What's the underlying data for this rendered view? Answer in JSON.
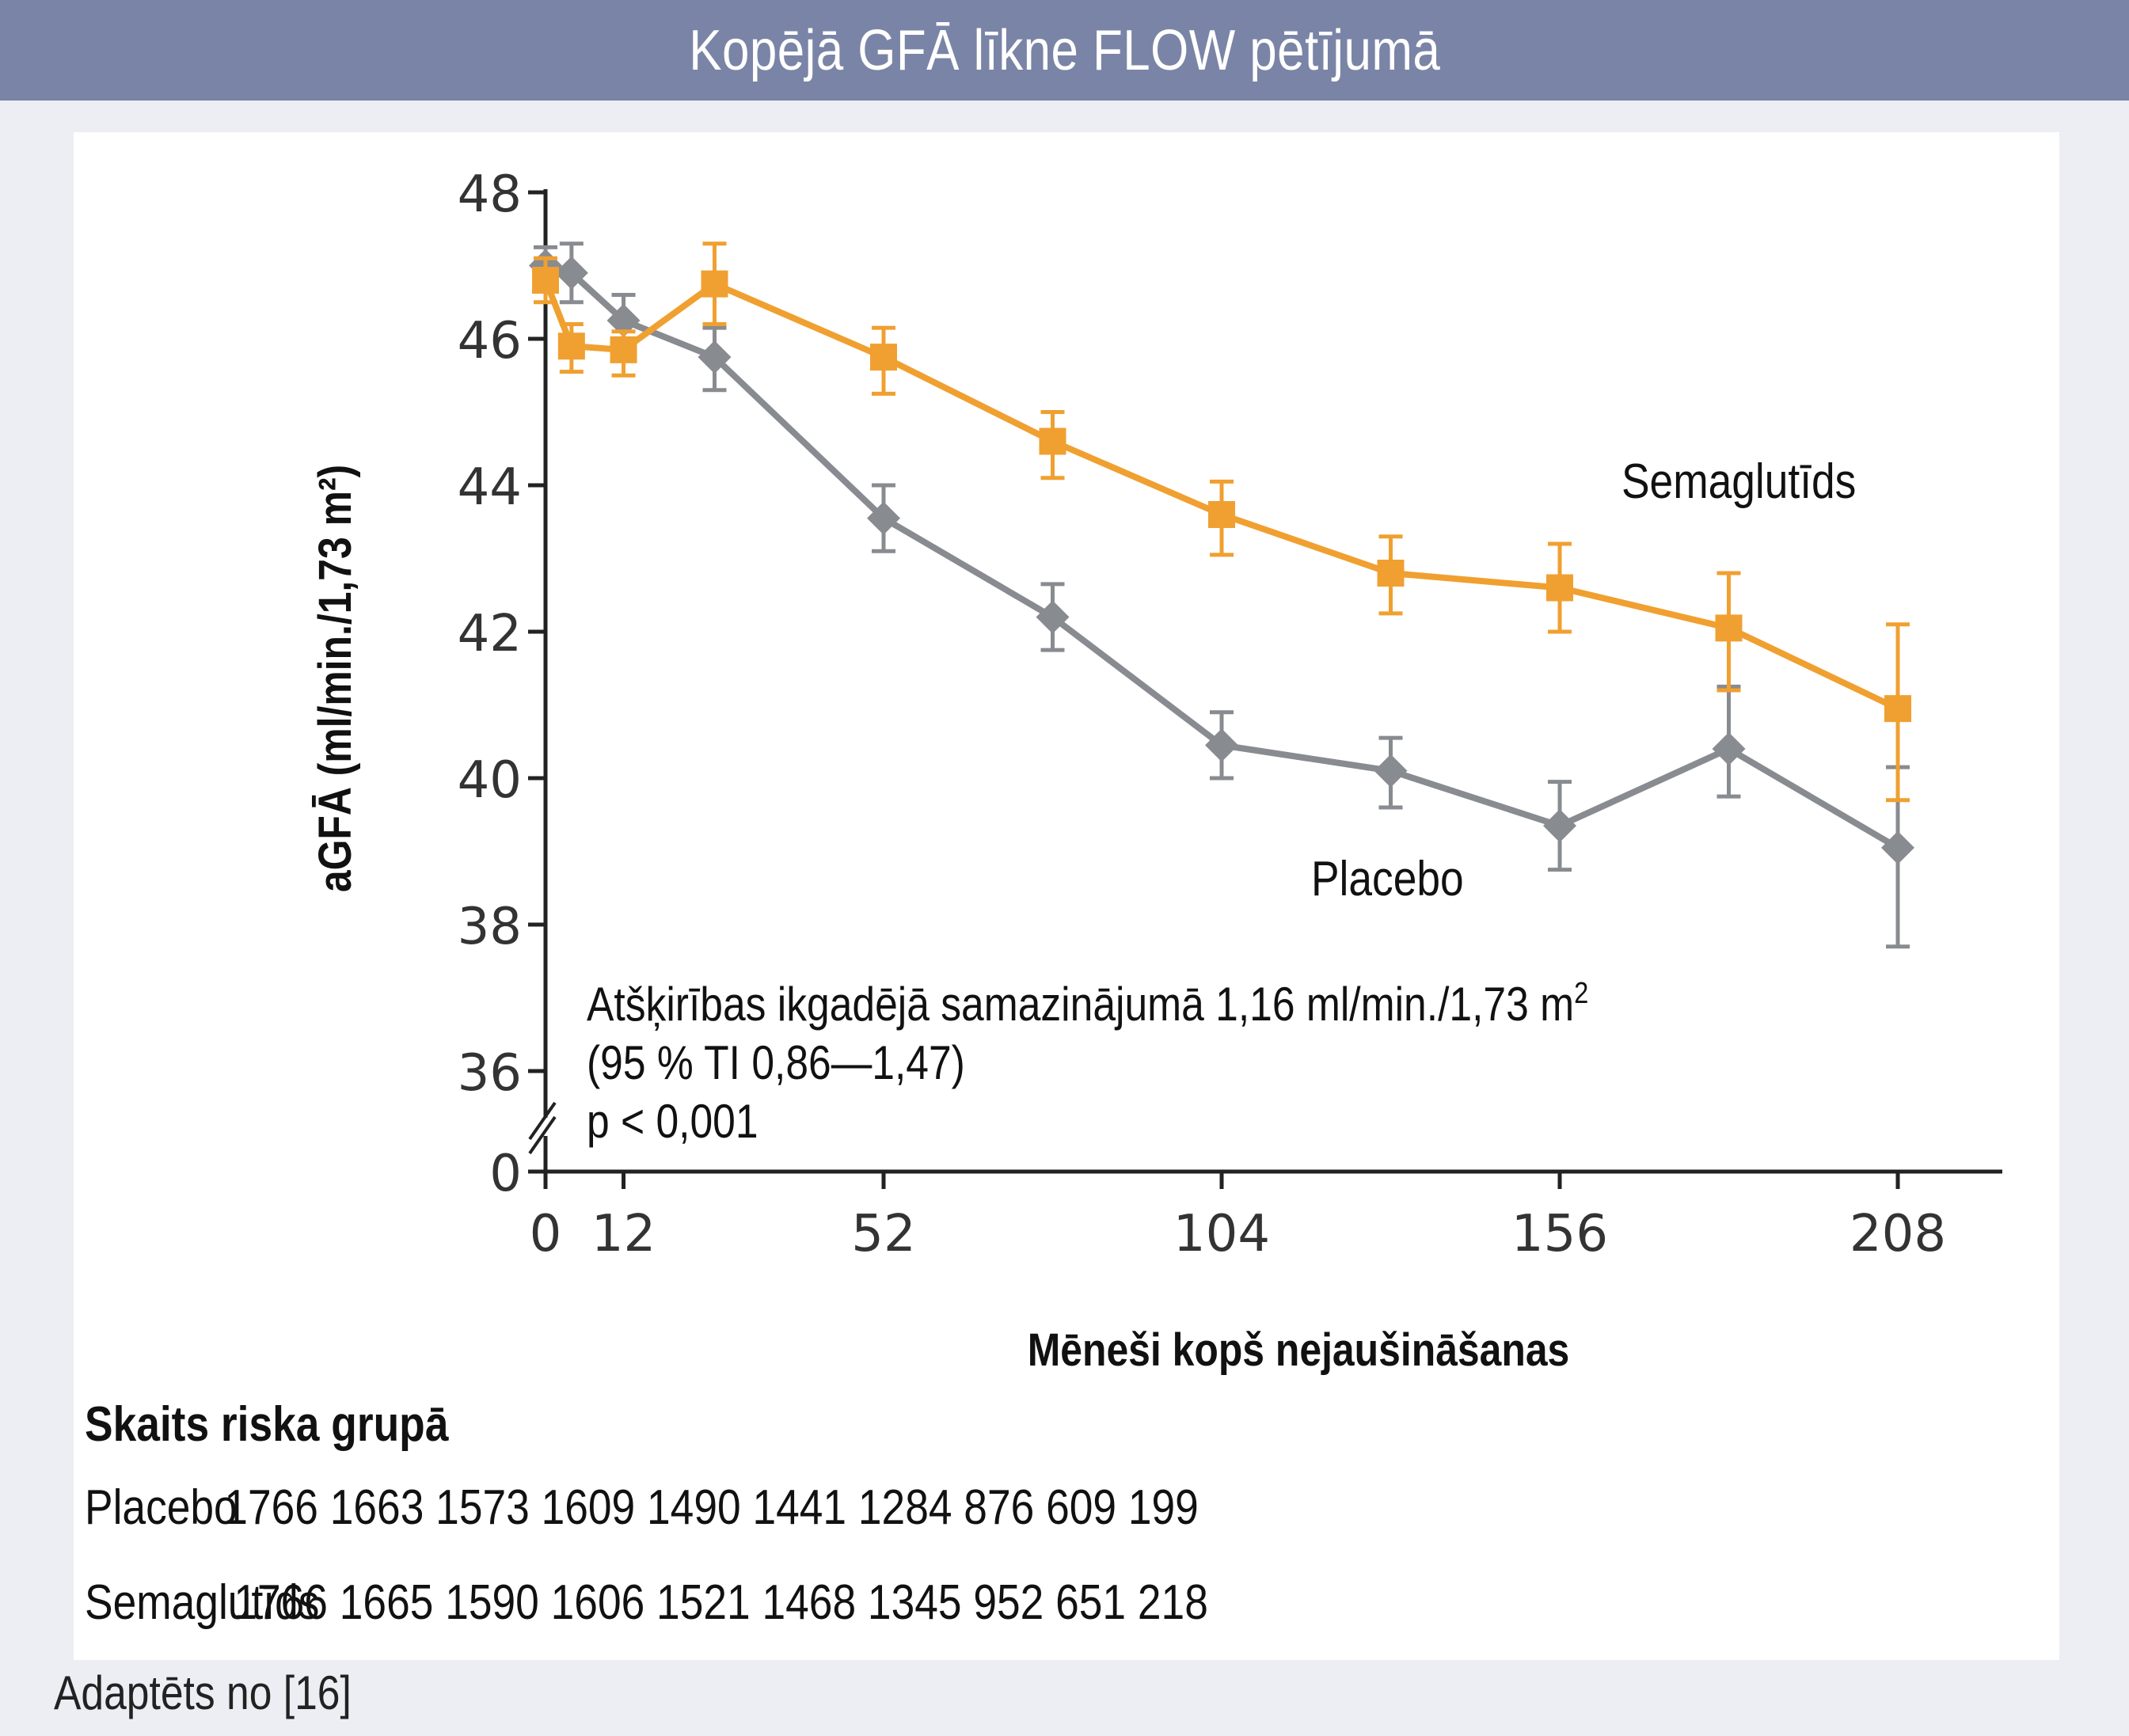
{
  "title": "Kopējā GFĀ līkne FLOW pētījumā",
  "chart_data": {
    "type": "line",
    "ylabel": "aGFĀ (ml/min./1,73 m²)",
    "xlabel": "Mēneši kopš nejaušināšanas",
    "ylim": [
      36,
      48
    ],
    "y_break": true,
    "y_ticks": [
      "48",
      "46",
      "44",
      "42",
      "40",
      "38",
      "36",
      "0"
    ],
    "x_ticks": [
      "0",
      "12",
      "52",
      "104",
      "156",
      "208"
    ],
    "x_tick_values": [
      0,
      12,
      52,
      104,
      156,
      208
    ],
    "series": [
      {
        "name": "Semaglutīds",
        "color": "#f0a030",
        "marker": "square",
        "x": [
          0,
          4,
          12,
          26,
          52,
          78,
          104,
          130,
          156,
          182,
          208
        ],
        "values": [
          46.8,
          45.9,
          45.85,
          46.75,
          45.75,
          44.6,
          43.6,
          42.8,
          42.6,
          42.05,
          40.95
        ],
        "err_low": [
          46.5,
          45.55,
          45.5,
          46.2,
          45.25,
          44.1,
          43.05,
          42.25,
          42.0,
          41.2,
          39.7
        ],
        "err_high": [
          47.1,
          46.2,
          46.1,
          47.3,
          46.15,
          45.0,
          44.05,
          43.3,
          43.2,
          42.8,
          42.1
        ]
      },
      {
        "name": "Placebo",
        "color": "#888b90",
        "marker": "diamond",
        "x": [
          0,
          4,
          12,
          26,
          52,
          78,
          104,
          130,
          156,
          182,
          208
        ],
        "values": [
          47.0,
          46.9,
          46.25,
          45.75,
          43.55,
          42.2,
          40.45,
          40.1,
          39.35,
          40.4,
          39.05
        ],
        "err_low": [
          46.7,
          46.5,
          45.9,
          45.3,
          43.1,
          41.75,
          40.0,
          39.6,
          38.75,
          39.75,
          37.7
        ],
        "err_high": [
          47.25,
          47.3,
          46.6,
          46.15,
          44.0,
          42.65,
          40.9,
          40.55,
          39.95,
          41.25,
          40.15
        ]
      }
    ],
    "annotations": {
      "semaglutide_label": "Semaglutīds",
      "placebo_label": "Placebo",
      "difference_line1": "Atšķirības ikgadējā samazinājumā 1,16 ml/min./1,73 m",
      "difference_sup": "2",
      "difference_line2": "(95 % TI 0,86—1,47)",
      "difference_line3": "p < 0,001"
    }
  },
  "risk_table": {
    "title": "Skaits riska grupā",
    "rows": [
      {
        "label": "Placebo",
        "values": "1766 1663 1573 1609 1490 1441 1284 876 609 199"
      },
      {
        "label": "Semaglutīds",
        "values": "1766 1665 1590 1606 1521 1468 1345 952 651 218"
      }
    ]
  },
  "source": "Adaptēts no [16]"
}
